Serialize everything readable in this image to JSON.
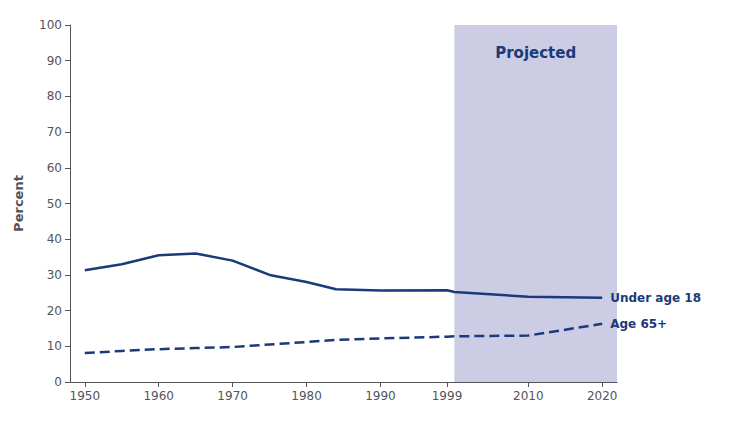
{
  "chart_data": {
    "type": "line",
    "ylabel": "Percent",
    "x": [
      1950,
      1955,
      1960,
      1965,
      1970,
      1975,
      1980,
      1984,
      1990,
      1999,
      2000,
      2010,
      2020
    ],
    "series": [
      {
        "name": "Under age 18",
        "color": "#1a3a7a",
        "line_style": "solid",
        "values": [
          31.3,
          33.0,
          35.5,
          36.0,
          34.0,
          30.0,
          28.0,
          26.0,
          25.6,
          25.7,
          25.2,
          23.9,
          23.6
        ]
      },
      {
        "name": "Age 65+",
        "color": "#1a3a7a",
        "line_style": "dashed",
        "values": [
          8.1,
          8.7,
          9.2,
          9.5,
          9.8,
          10.5,
          11.2,
          11.8,
          12.2,
          12.7,
          12.8,
          13.0,
          16.3
        ]
      }
    ],
    "shaded_region": {
      "label": "Projected",
      "from": 2000,
      "to": 2022,
      "color": "#9999cc"
    },
    "xlim": [
      1948,
      2022
    ],
    "xticks": [
      1950,
      1960,
      1970,
      1980,
      1990,
      1999,
      2010,
      2020
    ],
    "ylim": [
      0,
      100
    ],
    "yticks": [
      0,
      10,
      20,
      30,
      40,
      50,
      60,
      70,
      80,
      90,
      100
    ],
    "grid": false
  }
}
